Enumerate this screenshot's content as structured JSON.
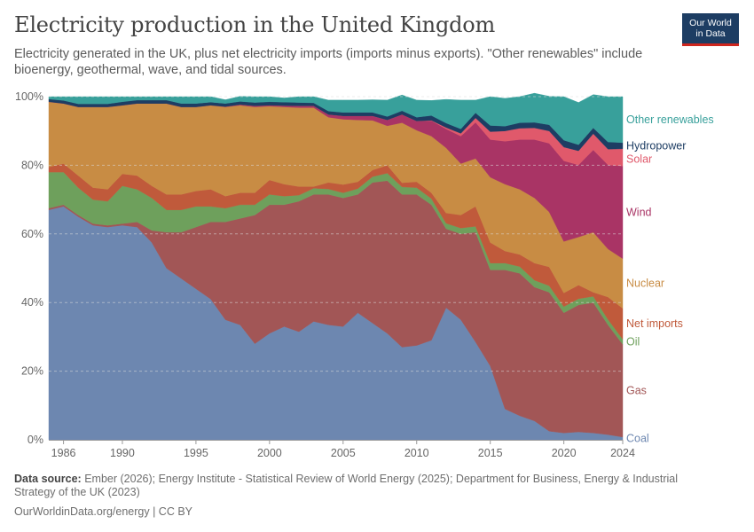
{
  "header": {
    "title": "Electricity production in the United Kingdom",
    "subtitle": "Electricity generated in the UK, plus net electricity imports (imports minus exports). \"Other renewables\" include bioenergy, geothermal, wave, and tidal sources.",
    "logo_line1": "Our World",
    "logo_line2": "in Data"
  },
  "footer": {
    "source_label": "Data source:",
    "source_text": "Ember (2026); Energy Institute - Statistical Review of World Energy (2025); Department for Business, Energy & Industrial Strategy of the UK (2023)",
    "credit": "OurWorldinData.org/energy | CC BY"
  },
  "chart_data": {
    "type": "area",
    "stacked": true,
    "y_format": "percent",
    "ylim": [
      0,
      100
    ],
    "yticks": [
      0,
      20,
      40,
      60,
      80,
      100
    ],
    "xlim": [
      1985,
      2024
    ],
    "xticks": [
      1986,
      1990,
      1995,
      2000,
      2005,
      2010,
      2015,
      2020,
      2024
    ],
    "grid": "horizontal dashed",
    "legend": "right, inline labels",
    "x": [
      1985,
      1986,
      1987,
      1988,
      1989,
      1990,
      1991,
      1992,
      1993,
      1994,
      1995,
      1996,
      1997,
      1998,
      1999,
      2000,
      2001,
      2002,
      2003,
      2004,
      2005,
      2006,
      2007,
      2008,
      2009,
      2010,
      2011,
      2012,
      2013,
      2014,
      2015,
      2016,
      2017,
      2018,
      2019,
      2020,
      2021,
      2022,
      2023,
      2024
    ],
    "series": [
      {
        "name": "Coal",
        "color": "#6d87b0",
        "values": [
          67,
          68,
          65,
          62.5,
          62,
          62.5,
          62,
          57.5,
          50,
          47,
          44,
          41,
          35,
          33.5,
          28,
          31,
          33,
          31.5,
          34.5,
          33.5,
          33,
          37,
          34,
          31,
          27,
          27.5,
          29,
          38.5,
          35,
          28.5,
          21.5,
          9,
          7,
          5.5,
          2.5,
          2,
          2.3,
          2,
          1.5,
          0.8
        ]
      },
      {
        "name": "Gas",
        "color": "#a25656",
        "values": [
          0.5,
          0.5,
          0.5,
          0.5,
          0.5,
          0.5,
          1.5,
          3.5,
          10.5,
          13.5,
          18,
          22.5,
          28.5,
          31,
          37.5,
          37.5,
          35.5,
          38,
          37,
          38,
          37.5,
          34.5,
          41,
          44.5,
          44.5,
          44,
          39.5,
          23,
          25,
          32,
          28,
          40.5,
          41.5,
          39,
          40.5,
          35,
          37,
          38,
          32,
          27
        ]
      },
      {
        "name": "Oil",
        "color": "#6ea05c",
        "values": [
          10.5,
          9.5,
          8,
          7,
          7,
          11,
          9.5,
          9.5,
          6.5,
          6.5,
          6,
          4.5,
          4,
          4,
          3,
          3,
          2.5,
          1.8,
          1.8,
          1.6,
          1.5,
          1.7,
          1.7,
          2.2,
          2.2,
          2,
          1.8,
          1.6,
          1.7,
          1.7,
          2,
          2,
          2,
          2,
          1.9,
          1.8,
          1.8,
          1.8,
          1.6,
          1.5
        ]
      },
      {
        "name": "Net imports",
        "color": "#c05a3b",
        "values": [
          1.5,
          2.5,
          3.5,
          3.5,
          3.5,
          3.5,
          4,
          3.5,
          4.5,
          4.5,
          4.5,
          5,
          3.5,
          3.5,
          3.5,
          4.2,
          3.5,
          2.5,
          0.5,
          1.9,
          2.4,
          2,
          1.9,
          2.3,
          1.2,
          1.7,
          1.7,
          3,
          3.8,
          5.8,
          6,
          3.5,
          3.5,
          5,
          5.5,
          4,
          4,
          1.2,
          6.5,
          9
        ]
      },
      {
        "name": "Nuclear",
        "color": "#c88c44",
        "values": [
          19,
          17.5,
          20,
          23.5,
          24,
          20,
          21,
          24,
          26.5,
          25.5,
          24.5,
          24.5,
          26,
          25.5,
          25,
          21.5,
          22.5,
          23,
          23,
          19,
          19,
          18,
          14.5,
          11.5,
          17.5,
          15,
          16.5,
          19,
          15,
          14,
          19,
          19.5,
          19,
          19,
          16,
          15,
          14,
          17.5,
          14,
          14.5
        ]
      },
      {
        "name": "Wind",
        "color": "#a93465",
        "values": [
          0,
          0,
          0,
          0,
          0,
          0,
          0,
          0,
          0,
          0,
          0,
          0,
          0.1,
          0.2,
          0.3,
          0.3,
          0.4,
          0.5,
          0.5,
          0.8,
          1,
          1.2,
          1.3,
          1.7,
          2.4,
          2.7,
          4.5,
          5.5,
          8,
          10.5,
          11,
          12.5,
          14.5,
          17,
          20,
          23.5,
          21,
          24,
          24.5,
          27
        ]
      },
      {
        "name": "Solar",
        "color": "#e0596b",
        "values": [
          0,
          0,
          0,
          0,
          0,
          0,
          0,
          0,
          0,
          0,
          0,
          0,
          0,
          0,
          0,
          0,
          0,
          0,
          0,
          0,
          0,
          0,
          0,
          0,
          0,
          0,
          0.1,
          0.4,
          0.8,
          1.3,
          2.3,
          3,
          3.3,
          3.4,
          3.6,
          4,
          4.1,
          4.7,
          4.6,
          5
        ]
      },
      {
        "name": "Hydropower",
        "color": "#1d3d63",
        "values": [
          0.8,
          0.9,
          0.9,
          0.9,
          0.9,
          1,
          1,
          1,
          1,
          1,
          1,
          0.9,
          0.9,
          0.9,
          1,
          1,
          1,
          1,
          0.9,
          1,
          1,
          1,
          1,
          1,
          1.1,
          1.1,
          1.4,
          1.3,
          1.3,
          1.5,
          1.8,
          1.4,
          1.6,
          1.6,
          1.8,
          2,
          1.8,
          1.7,
          2.1,
          1.8
        ]
      },
      {
        "name": "Other renewables",
        "color": "#38a09b",
        "values": [
          0.7,
          1.1,
          2.1,
          2.1,
          2.1,
          1.5,
          1,
          1,
          1,
          2,
          2,
          1.6,
          1.1,
          1.5,
          1.7,
          1.5,
          1.2,
          1.7,
          1.8,
          3.2,
          3.6,
          3.6,
          3.7,
          4.8,
          4.6,
          5.0,
          4.4,
          6.9,
          8.4,
          3.7,
          8.4,
          8.1,
          7.6,
          8.5,
          8.3,
          12.7,
          12.3,
          9.7,
          13.2,
          13.4
        ]
      }
    ]
  }
}
